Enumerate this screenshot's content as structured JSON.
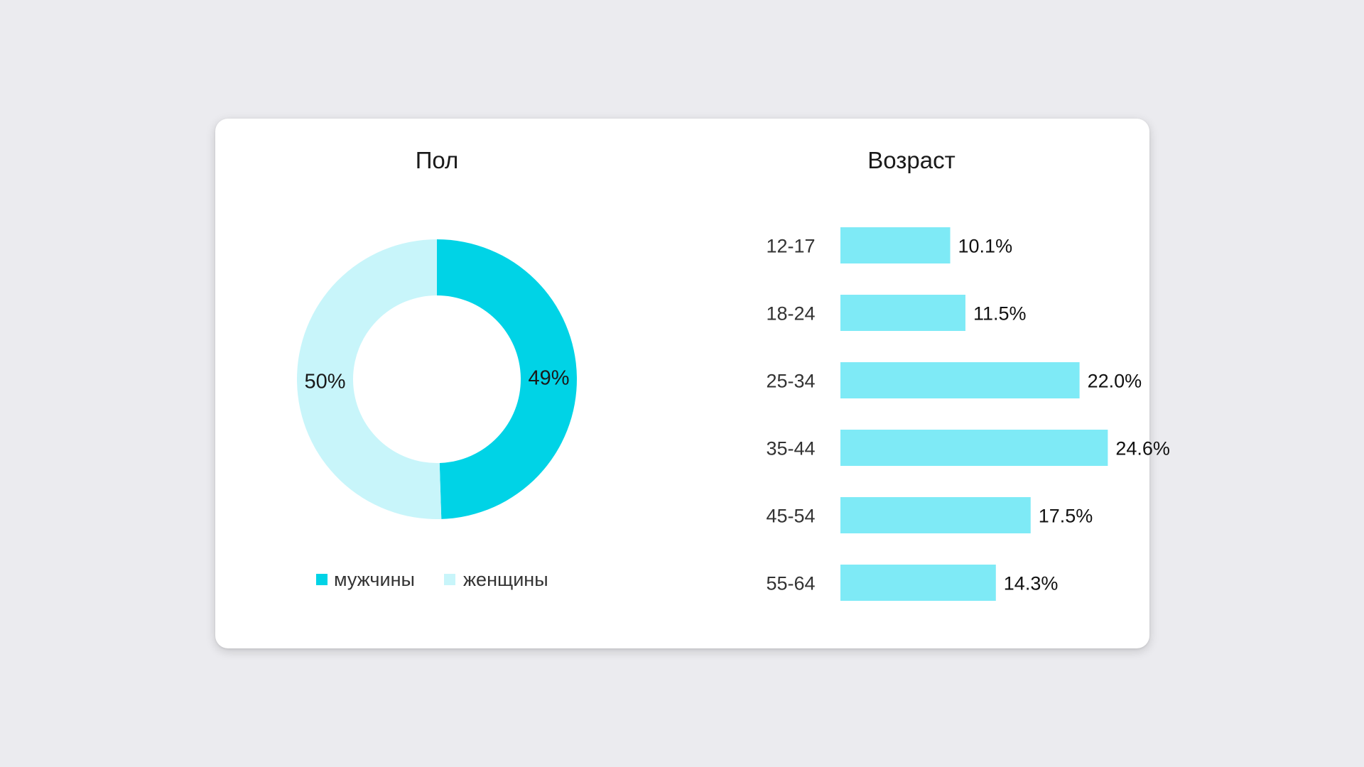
{
  "colors": {
    "page_background": "#ebebef",
    "card_background": "#ffffff",
    "male": "#00d3e6",
    "female": "#c8f5fa",
    "bar": "#7eeaf6"
  },
  "chart_data": [
    {
      "type": "pie",
      "style": "donut",
      "title": "Пол",
      "slices": [
        {
          "name": "мужчины",
          "value": 49,
          "label": "49%"
        },
        {
          "name": "женщины",
          "value": 50,
          "label": "50%"
        }
      ],
      "legend_position": "bottom"
    },
    {
      "type": "bar",
      "orientation": "horizontal",
      "title": "Возраст",
      "categories": [
        "12-17",
        "18-24",
        "25-34",
        "35-44",
        "45-54",
        "55-64"
      ],
      "values": [
        10.1,
        11.5,
        22.0,
        24.6,
        17.5,
        14.3
      ],
      "value_labels": [
        "10.1%",
        "11.5%",
        "22.0%",
        "24.6%",
        "17.5%",
        "14.3%"
      ],
      "grid": false
    }
  ]
}
